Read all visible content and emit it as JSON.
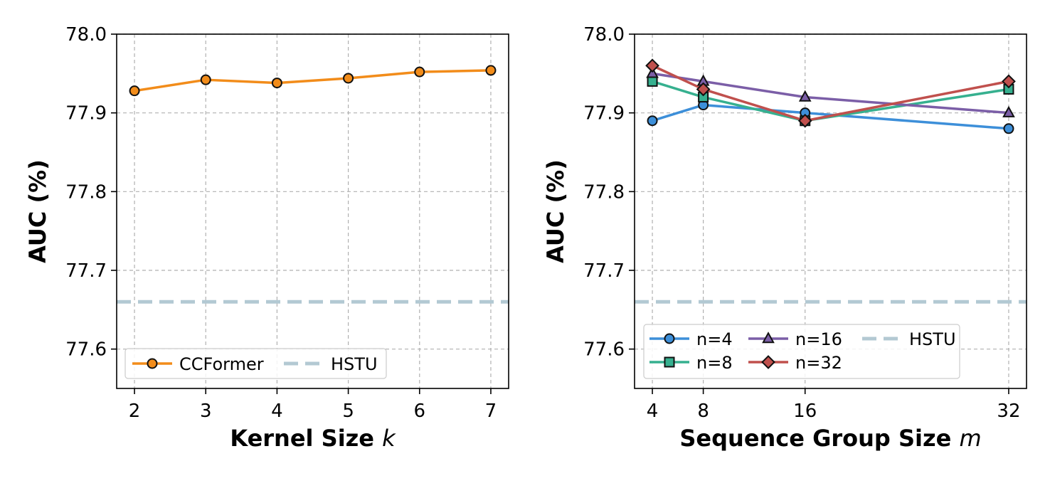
{
  "chart_data": [
    {
      "type": "line",
      "xlabel": "Kernel Size",
      "xlabel_var": "k",
      "ylabel": "AUC (%)",
      "categories": [
        "2",
        "3",
        "4",
        "5",
        "6",
        "7"
      ],
      "x": [
        2,
        3,
        4,
        5,
        6,
        7
      ],
      "xlim": [
        1.75,
        7.25
      ],
      "ylim": [
        77.55,
        78.0
      ],
      "yticks": [
        "77.6",
        "77.7",
        "77.8",
        "77.9",
        "78.0"
      ],
      "grid": true,
      "legend_placement": "lower-left",
      "series": [
        {
          "name": "CCFormer",
          "values": [
            77.928,
            77.942,
            77.938,
            77.944,
            77.952,
            77.954
          ],
          "color": "#f28c1a",
          "marker": "circle"
        }
      ],
      "baseline": {
        "name": "HSTU",
        "value": 77.66,
        "color": "#b3c9d3",
        "style": "dashed"
      }
    },
    {
      "type": "line",
      "xlabel": "Sequence Group Size",
      "xlabel_var": "m",
      "ylabel": "AUC (%)",
      "categories": [
        "4",
        "8",
        "16",
        "32"
      ],
      "x": [
        4,
        8,
        16,
        32
      ],
      "xlim": [
        2.6,
        33.4
      ],
      "ylim": [
        77.55,
        78.0
      ],
      "yticks": [
        "77.6",
        "77.7",
        "77.8",
        "77.9",
        "78.0"
      ],
      "grid": true,
      "legend_placement": "lower-left",
      "series": [
        {
          "name": "n=4",
          "values": [
            77.89,
            77.91,
            77.9,
            77.88
          ],
          "color": "#3d8fd9",
          "marker": "circle"
        },
        {
          "name": "n=8",
          "values": [
            77.94,
            77.92,
            77.89,
            77.93
          ],
          "color": "#36b08f",
          "marker": "square"
        },
        {
          "name": "n=16",
          "values": [
            77.95,
            77.94,
            77.92,
            77.9
          ],
          "color": "#7b5ea7",
          "marker": "triangle"
        },
        {
          "name": "n=32",
          "values": [
            77.96,
            77.93,
            77.89,
            77.94
          ],
          "color": "#c0504d",
          "marker": "diamond"
        }
      ],
      "baseline": {
        "name": "HSTU",
        "value": 77.66,
        "color": "#b3c9d3",
        "style": "dashed"
      }
    }
  ]
}
